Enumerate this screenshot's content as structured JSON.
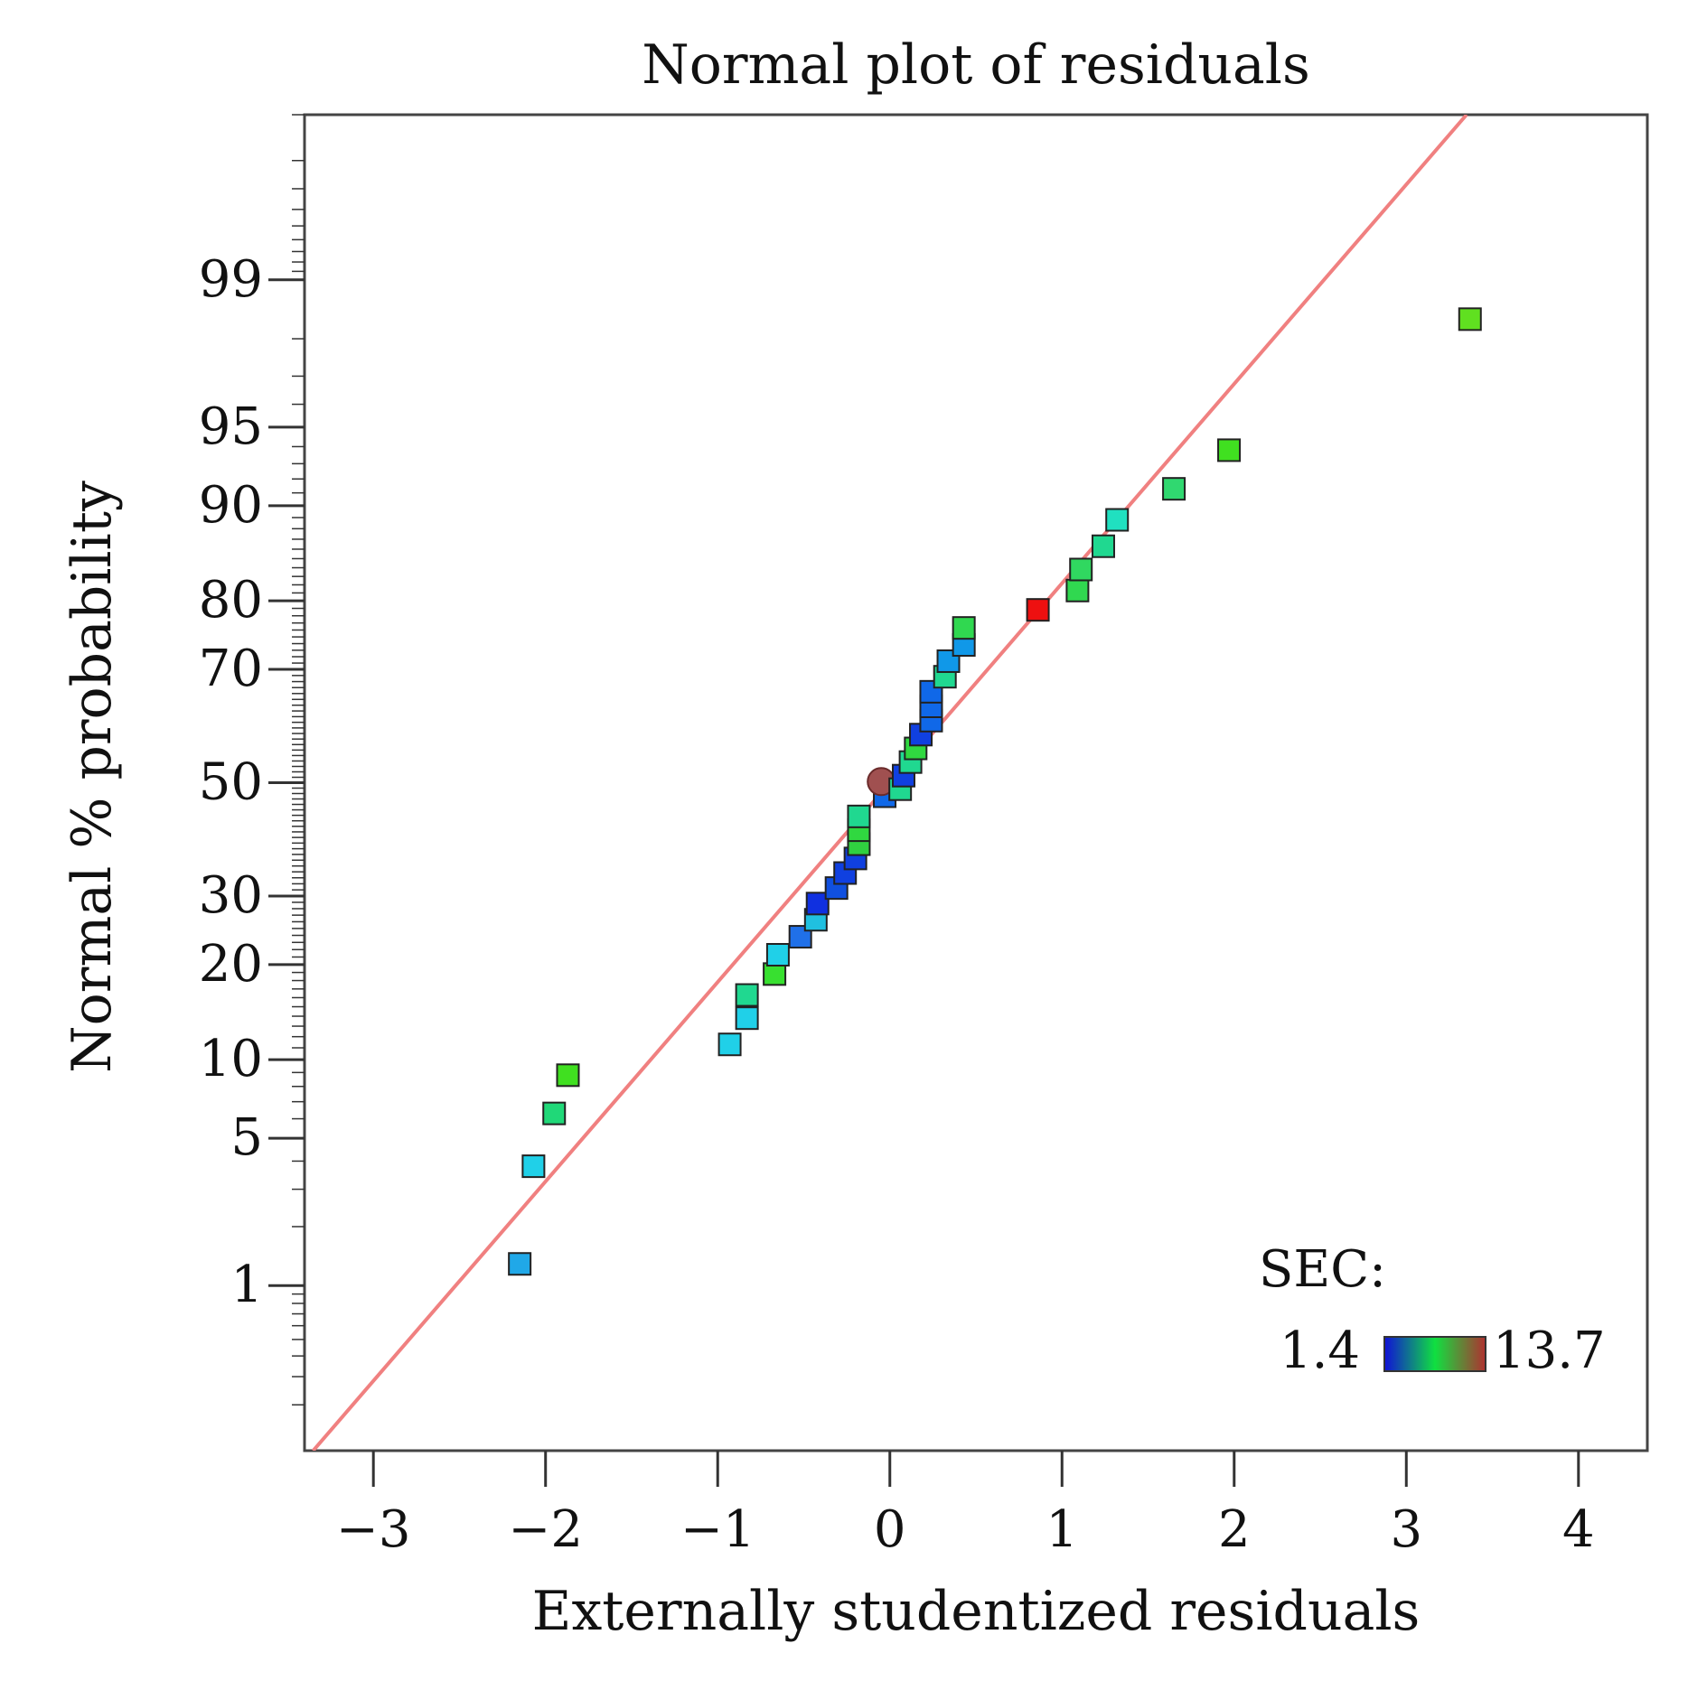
{
  "chart_data": {
    "type": "scatter",
    "title": "Normal plot of residuals",
    "xlabel": "Externally studentized residuals",
    "ylabel": "Normal % probability",
    "xlim": [
      -3.4,
      4.4
    ],
    "x_ticks": [
      -3,
      -2,
      -1,
      0,
      1,
      2,
      3,
      4
    ],
    "x_tick_labels": [
      "−3",
      "−2",
      "−1",
      "0",
      "1",
      "2",
      "3",
      "4"
    ],
    "y_scale": "normal-probability",
    "ylim": [
      0.1,
      99.9
    ],
    "y_ticks": [
      1,
      5,
      10,
      20,
      30,
      50,
      70,
      80,
      90,
      95,
      99
    ],
    "y_tick_labels": [
      "1",
      "5",
      "10",
      "20",
      "30",
      "50",
      "70",
      "80",
      "90",
      "95",
      "99"
    ],
    "grid": false,
    "reference_line": {
      "color": "#f08080",
      "points": [
        [
          -3.35,
          0.1
        ],
        [
          3.35,
          99.9
        ]
      ]
    },
    "color_legend": {
      "title": "SEC:",
      "min_label": "1.4",
      "max_label": "13.7",
      "placement": "bottom-right",
      "gradient": [
        "#1010d8",
        "#10e040",
        "#b03030"
      ]
    },
    "points": [
      {
        "x": -2.15,
        "y": 1.3,
        "color": "#20a8e8"
      },
      {
        "x": -2.07,
        "y": 3.8,
        "color": "#20d0e8"
      },
      {
        "x": -1.95,
        "y": 6.3,
        "color": "#20d878"
      },
      {
        "x": -1.87,
        "y": 8.8,
        "color": "#40e020"
      },
      {
        "x": -0.93,
        "y": 11.3,
        "color": "#20d0e8"
      },
      {
        "x": -0.83,
        "y": 13.8,
        "color": "#20d0e8"
      },
      {
        "x": -0.83,
        "y": 16.3,
        "color": "#20d890"
      },
      {
        "x": -0.67,
        "y": 18.8,
        "color": "#38e030"
      },
      {
        "x": -0.65,
        "y": 21.3,
        "color": "#20d0e8"
      },
      {
        "x": -0.52,
        "y": 23.8,
        "color": "#2070e8"
      },
      {
        "x": -0.43,
        "y": 26.3,
        "color": "#20c0e0"
      },
      {
        "x": -0.42,
        "y": 28.8,
        "color": "#1030e0"
      },
      {
        "x": -0.31,
        "y": 31.3,
        "color": "#1050e0"
      },
      {
        "x": -0.26,
        "y": 33.8,
        "color": "#1040e0"
      },
      {
        "x": -0.2,
        "y": 36.3,
        "color": "#1040e0"
      },
      {
        "x": -0.18,
        "y": 38.8,
        "color": "#30d040"
      },
      {
        "x": -0.18,
        "y": 41.3,
        "color": "#30d840"
      },
      {
        "x": -0.18,
        "y": 43.8,
        "color": "#20d890"
      },
      {
        "x": -0.03,
        "y": 47.5,
        "color": "#1068e8"
      },
      {
        "x": -0.05,
        "y": 50.2,
        "color": "#a05050",
        "shape": "circle"
      },
      {
        "x": 0.06,
        "y": 48.8,
        "color": "#20d890"
      },
      {
        "x": 0.08,
        "y": 51.3,
        "color": "#1040e0"
      },
      {
        "x": 0.12,
        "y": 53.8,
        "color": "#20d890"
      },
      {
        "x": 0.15,
        "y": 56.3,
        "color": "#30d840"
      },
      {
        "x": 0.18,
        "y": 58.8,
        "color": "#1040e0"
      },
      {
        "x": 0.24,
        "y": 61.3,
        "color": "#1068e8"
      },
      {
        "x": 0.24,
        "y": 63.8,
        "color": "#1068e8"
      },
      {
        "x": 0.24,
        "y": 66.3,
        "color": "#1068e8"
      },
      {
        "x": 0.32,
        "y": 68.8,
        "color": "#20d890"
      },
      {
        "x": 0.34,
        "y": 71.3,
        "color": "#1098e8"
      },
      {
        "x": 0.43,
        "y": 73.8,
        "color": "#1098e8"
      },
      {
        "x": 0.43,
        "y": 76.3,
        "color": "#30d850"
      },
      {
        "x": 0.86,
        "y": 78.8,
        "color": "#ee1010"
      },
      {
        "x": 1.09,
        "y": 81.3,
        "color": "#30d850"
      },
      {
        "x": 1.11,
        "y": 83.8,
        "color": "#30d860"
      },
      {
        "x": 1.24,
        "y": 86.3,
        "color": "#20d890"
      },
      {
        "x": 1.32,
        "y": 88.8,
        "color": "#20e0c0"
      },
      {
        "x": 1.65,
        "y": 91.3,
        "color": "#30d870"
      },
      {
        "x": 1.97,
        "y": 93.8,
        "color": "#40e020"
      },
      {
        "x": 3.37,
        "y": 98.4,
        "color": "#60e020"
      }
    ]
  }
}
